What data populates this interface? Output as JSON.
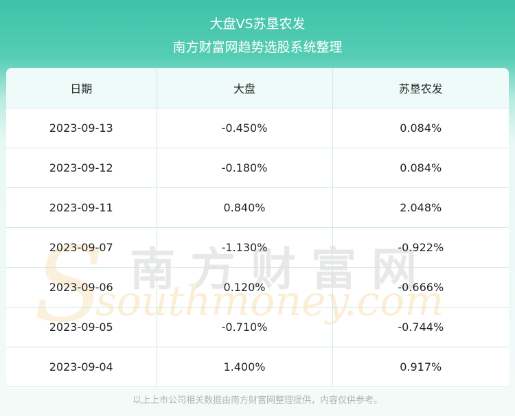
{
  "header": {
    "title": "大盘VS苏垦农发",
    "subtitle": "南方财富网趋势选股系统整理"
  },
  "chart_data": {
    "type": "table",
    "columns": [
      "日期",
      "大盘",
      "苏垦农发"
    ],
    "rows": [
      [
        "2023-09-13",
        "-0.450%",
        "0.084%"
      ],
      [
        "2023-09-12",
        "-0.180%",
        "0.084%"
      ],
      [
        "2023-09-11",
        "0.840%",
        "2.048%"
      ],
      [
        "2023-09-07",
        "-1.130%",
        "-0.922%"
      ],
      [
        "2023-09-06",
        "0.120%",
        "-0.666%"
      ],
      [
        "2023-09-05",
        "-0.710%",
        "-0.744%"
      ],
      [
        "2023-09-04",
        "1.400%",
        "0.917%"
      ]
    ]
  },
  "watermark": {
    "chinese": "南方财富网",
    "english": "southmoney.com"
  },
  "footer": {
    "note": "以上上市公司相关数据由南方财富网整理提供，内容仅供参考。"
  },
  "colors": {
    "header_gradient": "#3ec2a8",
    "grid_line": "#cfe9e3",
    "table_header_bg": "#eefbf8"
  }
}
